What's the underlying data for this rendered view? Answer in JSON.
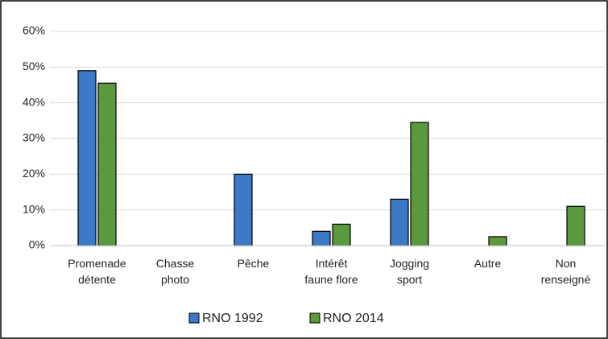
{
  "chart_data": {
    "type": "bar",
    "categories": [
      "Promenade détente",
      "Chasse photo",
      "Pêche",
      "Intérêt faune flore",
      "Jogging sport",
      "Autre",
      "Non renseigné"
    ],
    "series": [
      {
        "name": "RNO 1992",
        "color": "#3b7ac6",
        "values": [
          49,
          0,
          20,
          4,
          13,
          0,
          0
        ]
      },
      {
        "name": "RNO 2014",
        "color": "#5b9a3c",
        "values": [
          45.5,
          0,
          0,
          6,
          34.5,
          2.5,
          11
        ]
      }
    ],
    "ylim": [
      0,
      60
    ],
    "yticks": [
      {
        "value": 0,
        "label": "0%"
      },
      {
        "value": 10,
        "label": "10%"
      },
      {
        "value": 20,
        "label": "20%"
      },
      {
        "value": 30,
        "label": "30%"
      },
      {
        "value": 40,
        "label": "40%"
      },
      {
        "value": 50,
        "label": "50%"
      },
      {
        "value": 60,
        "label": "60%"
      }
    ],
    "grid": true,
    "legend": "bottom"
  }
}
